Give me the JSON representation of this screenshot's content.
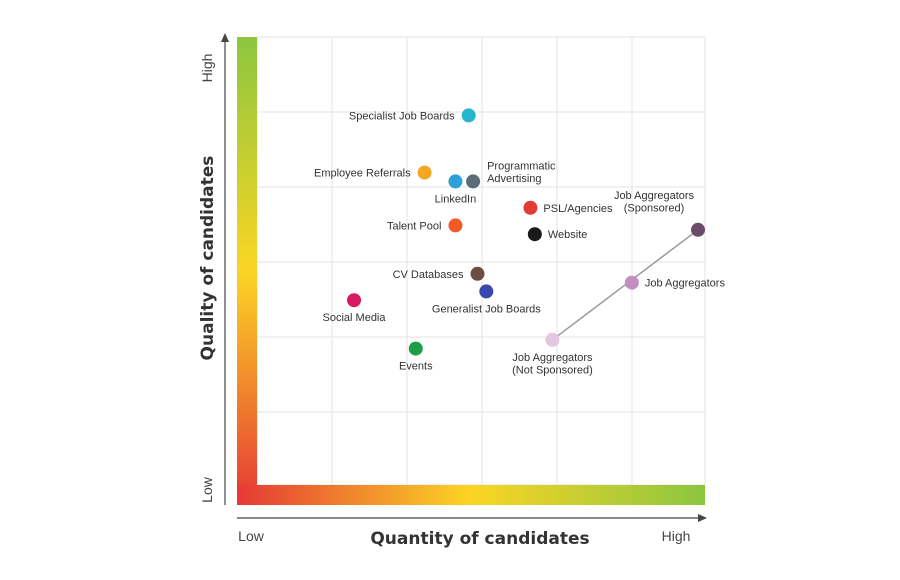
{
  "chart_data": {
    "type": "scatter",
    "title": "",
    "xlabel": "Quantity of candidates",
    "ylabel": "Quality of candidates",
    "x_ticks": [
      "Low",
      "High"
    ],
    "y_ticks": [
      "Low",
      "High"
    ],
    "xlim": [
      0,
      10
    ],
    "ylim": [
      0,
      10
    ],
    "grid": true,
    "gradient_colors": {
      "low": "#e53935",
      "mid": "#fbd524",
      "high": "#8cc63f"
    },
    "points": [
      {
        "label": [
          "Specialist Job Boards"
        ],
        "x": 4.8,
        "y": 8.4,
        "color": "#26b6cf",
        "label_pos": "left"
      },
      {
        "label": [
          "Employee Referrals"
        ],
        "x": 3.8,
        "y": 7.1,
        "color": "#f5a623",
        "label_pos": "left"
      },
      {
        "label": [
          "LinkedIn"
        ],
        "x": 4.5,
        "y": 6.9,
        "color": "#2d9fd9",
        "label_pos": "below"
      },
      {
        "label": [
          "Programmatic",
          "Advertising"
        ],
        "x": 4.9,
        "y": 6.9,
        "color": "#5a6e7a",
        "label_pos": "right-up"
      },
      {
        "label": [
          "PSL/Agencies"
        ],
        "x": 6.2,
        "y": 6.3,
        "color": "#e53935",
        "label_pos": "right"
      },
      {
        "label": [
          "Talent Pool"
        ],
        "x": 4.5,
        "y": 5.9,
        "color": "#f15a24",
        "label_pos": "left"
      },
      {
        "label": [
          "Website"
        ],
        "x": 6.3,
        "y": 5.7,
        "color": "#1a1a1a",
        "label_pos": "right"
      },
      {
        "label": [
          "CV Databases"
        ],
        "x": 5.0,
        "y": 4.8,
        "color": "#6d4c41",
        "label_pos": "left"
      },
      {
        "label": [
          "Generalist Job Boards"
        ],
        "x": 5.2,
        "y": 4.4,
        "color": "#3949ab",
        "label_pos": "below"
      },
      {
        "label": [
          "Social Media"
        ],
        "x": 2.2,
        "y": 4.2,
        "color": "#d81b60",
        "label_pos": "below"
      },
      {
        "label": [
          "Events"
        ],
        "x": 3.6,
        "y": 3.1,
        "color": "#1e9e4a",
        "label_pos": "below"
      },
      {
        "label": [
          "Job Aggregators",
          "(Not Sponsored)"
        ],
        "x": 6.7,
        "y": 3.3,
        "color": "#e2c7df",
        "label_pos": "below"
      },
      {
        "label": [
          "Job Aggregators"
        ],
        "x": 8.5,
        "y": 4.6,
        "color": "#c38fc0",
        "label_pos": "right"
      },
      {
        "label": [
          "Job Aggregators",
          "(Sponsored)"
        ],
        "x": 10.0,
        "y": 5.8,
        "color": "#6a4c6a",
        "label_pos": "above"
      }
    ],
    "connector": {
      "from_label": "Job Aggregators (Not Sponsored)",
      "to_label": "Job Aggregators (Sponsored)",
      "color": "#999999"
    }
  }
}
